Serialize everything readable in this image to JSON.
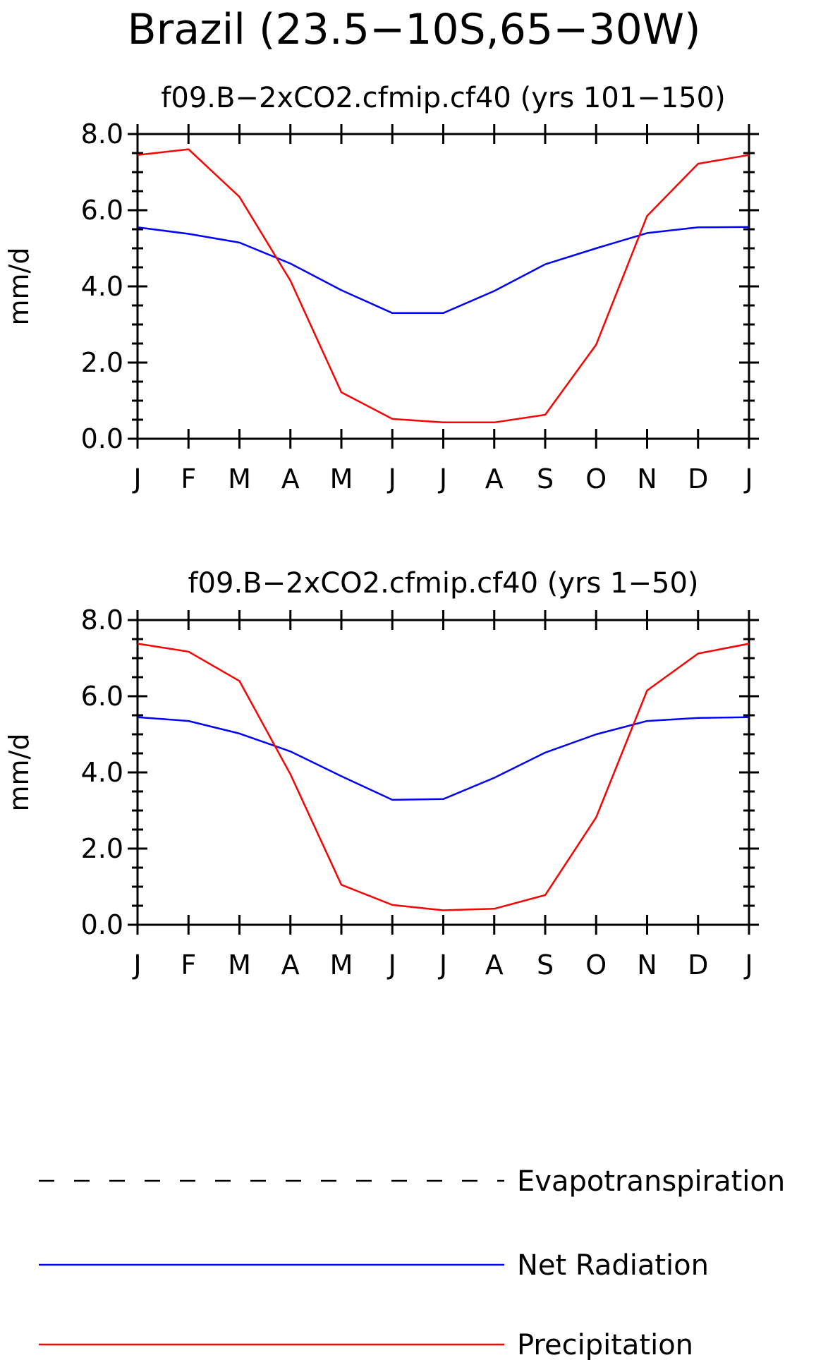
{
  "page_title": "Brazil (23.5−10S,65−30W)",
  "chart_data": [
    {
      "type": "line",
      "title": "f09.B−2xCO2.cfmip.cf40 (yrs 101−150)",
      "ylabel": "mm/d",
      "ylim": [
        0,
        8
      ],
      "yticks": [
        "0.0",
        "2.0",
        "4.0",
        "6.0",
        "8.0"
      ],
      "yticks_values": [
        0,
        2,
        4,
        6,
        8
      ],
      "categories": [
        "J",
        "F",
        "M",
        "A",
        "M",
        "J",
        "J",
        "A",
        "S",
        "O",
        "N",
        "D",
        "J"
      ],
      "series": [
        {
          "name": "Net Radiation",
          "color": "#0000ff",
          "values": [
            5.55,
            5.38,
            5.15,
            4.6,
            3.9,
            3.3,
            3.3,
            3.88,
            4.58,
            5.0,
            5.4,
            5.55,
            5.56
          ]
        },
        {
          "name": "Precipitation",
          "color": "#ff0000",
          "values": [
            7.45,
            7.6,
            6.35,
            4.15,
            1.22,
            0.52,
            0.43,
            0.43,
            0.63,
            2.47,
            5.85,
            7.22,
            7.45
          ]
        }
      ]
    },
    {
      "type": "line",
      "title": "f09.B−2xCO2.cfmip.cf40 (yrs 1−50)",
      "ylabel": "mm/d",
      "ylim": [
        0,
        8
      ],
      "yticks": [
        "0.0",
        "2.0",
        "4.0",
        "6.0",
        "8.0"
      ],
      "yticks_values": [
        0,
        2,
        4,
        6,
        8
      ],
      "categories": [
        "J",
        "F",
        "M",
        "A",
        "M",
        "J",
        "J",
        "A",
        "S",
        "O",
        "N",
        "D",
        "J"
      ],
      "series": [
        {
          "name": "Net Radiation",
          "color": "#0000ff",
          "values": [
            5.45,
            5.35,
            5.02,
            4.55,
            3.9,
            3.28,
            3.3,
            3.86,
            4.52,
            5.0,
            5.35,
            5.43,
            5.45
          ]
        },
        {
          "name": "Precipitation",
          "color": "#ff0000",
          "values": [
            7.38,
            7.17,
            6.4,
            3.95,
            1.05,
            0.52,
            0.38,
            0.42,
            0.78,
            2.82,
            6.15,
            7.12,
            7.38
          ]
        }
      ]
    }
  ],
  "legend": {
    "placement": "bottom",
    "items": [
      {
        "label": "Evapotranspiration",
        "color": "#000000",
        "style": "dashed"
      },
      {
        "label": "Net Radiation",
        "color": "#0000ff",
        "style": "solid"
      },
      {
        "label": "Precipitation",
        "color": "#ff0000",
        "style": "solid"
      }
    ]
  }
}
